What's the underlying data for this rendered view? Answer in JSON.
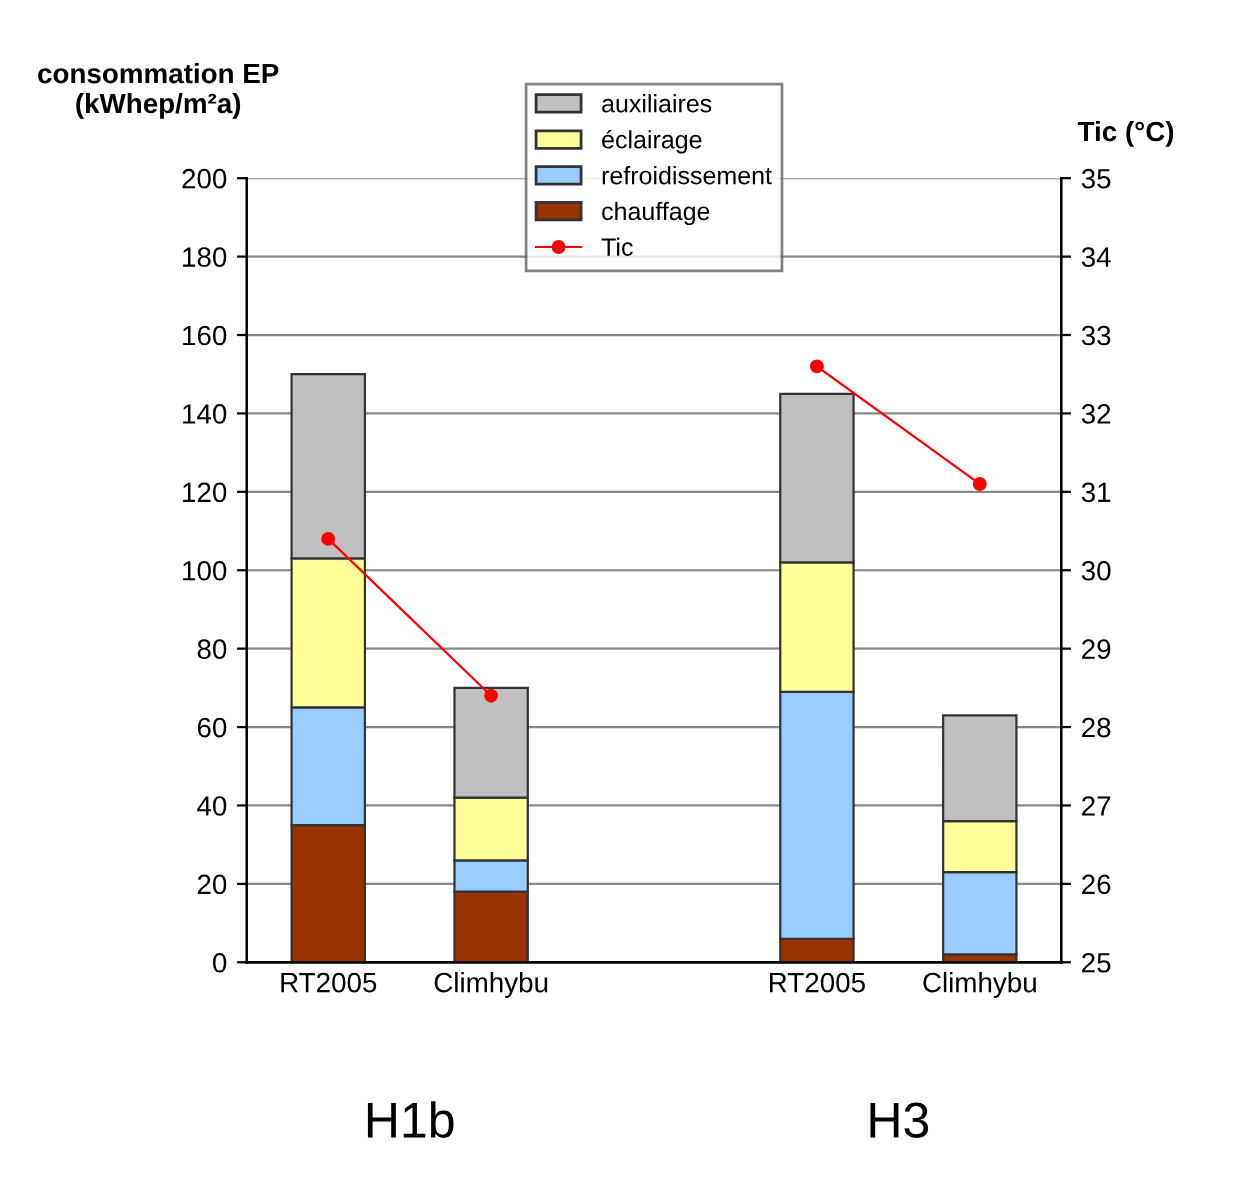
{
  "chart_data": {
    "type": "bar",
    "stacked": true,
    "categories": [
      "RT2005",
      "Climhybu",
      null,
      "RT2005",
      "Climhybu"
    ],
    "ylabel": "consommation EP\n(kWhep/m²a)",
    "y2label": "Tic (°C)",
    "ylim": [
      0,
      200
    ],
    "yticks": [
      0,
      20,
      40,
      60,
      80,
      100,
      120,
      140,
      160,
      180,
      200
    ],
    "y2lim": [
      25,
      35
    ],
    "y2ticks": [
      25,
      26,
      27,
      28,
      29,
      30,
      31,
      32,
      33,
      34,
      35
    ],
    "grid": "y",
    "legend": "top",
    "series": [
      {
        "name": "chauffage",
        "color": "#993300",
        "values": [
          35,
          18,
          null,
          6,
          2
        ]
      },
      {
        "name": "refroidissement",
        "color": "#99ccff",
        "values": [
          30,
          8,
          null,
          63,
          21
        ]
      },
      {
        "name": "éclairage",
        "color": "#ffff99",
        "values": [
          38,
          16,
          null,
          33,
          13
        ]
      },
      {
        "name": "auxiliaires",
        "color": "#c0c0c0",
        "values": [
          47,
          28,
          null,
          43,
          27
        ]
      },
      {
        "name": "Tic",
        "type": "line",
        "axis": "y2",
        "color": "#ff0000",
        "marker": "circle",
        "line_style": "solid",
        "values": [
          30.4,
          28.4,
          null,
          32.6,
          31.1
        ]
      }
    ],
    "annotations": [
      "H1b",
      "H3"
    ]
  }
}
